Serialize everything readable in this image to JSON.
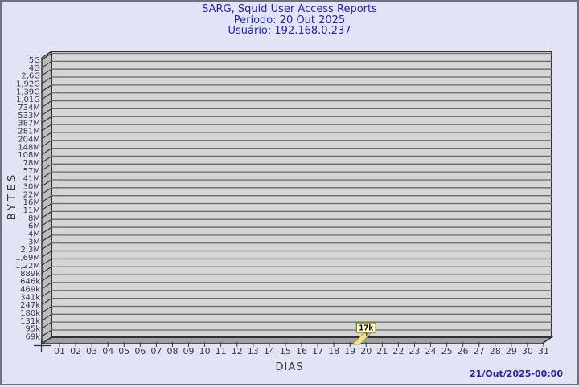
{
  "header": {
    "title": "SARG, Squid User Access Reports",
    "period": "Período: 20 Out 2025",
    "user": "Usuário: 192.168.0.237"
  },
  "footer": {
    "timestamp": "21/Out/2025-00:00"
  },
  "colors": {
    "background": "#e3e3f6",
    "frame_border": "#70707e",
    "title_text": "#2323ab",
    "plot_face": "#d5d5d5",
    "wall": "#bdbdbd",
    "floor": "#9f9f9f",
    "gridline": "#686868",
    "outline": "#303030",
    "tick_text": "#3a3a3a",
    "bar_fill": "#f1e289",
    "bar_stroke": "#9a8c3a",
    "tooltip_bg": "#ffffc9",
    "tooltip_border": "#85852f",
    "tooltip_text": "#000000"
  },
  "chart_data": {
    "type": "bar",
    "title": "SARG, Squid User Access Reports",
    "subtitle_period": "Período: 20 Out 2025",
    "subtitle_user": "Usuário: 192.168.0.237",
    "xlabel": "DIAS",
    "ylabel": "BYTES",
    "grid": true,
    "legend": "none",
    "style": "pseudo-3d",
    "x_tick_labels": [
      "01",
      "02",
      "03",
      "04",
      "05",
      "06",
      "07",
      "08",
      "09",
      "10",
      "11",
      "12",
      "13",
      "14",
      "15",
      "16",
      "17",
      "18",
      "19",
      "20",
      "21",
      "22",
      "23",
      "24",
      "25",
      "26",
      "27",
      "28",
      "29",
      "30",
      "31"
    ],
    "y_tick_labels": [
      "5G",
      "4G",
      "2,6G",
      "1,92G",
      "1,39G",
      "1,01G",
      "734M",
      "533M",
      "387M",
      "281M",
      "204M",
      "148M",
      "108M",
      "78M",
      "57M",
      "41M",
      "30M",
      "22M",
      "16M",
      "11M",
      "8M",
      "6M",
      "4M",
      "3M",
      "2,3M",
      "1,69M",
      "1,22M",
      "889k",
      "646k",
      "469k",
      "341k",
      "247k",
      "180k",
      "131k",
      "95k",
      "69k"
    ],
    "ylim": [
      "69k",
      "5G"
    ],
    "categories": [
      "01",
      "02",
      "03",
      "04",
      "05",
      "06",
      "07",
      "08",
      "09",
      "10",
      "11",
      "12",
      "13",
      "14",
      "15",
      "16",
      "17",
      "18",
      "19",
      "20",
      "21",
      "22",
      "23",
      "24",
      "25",
      "26",
      "27",
      "28",
      "29",
      "30",
      "31"
    ],
    "series": [
      {
        "name": "bytes",
        "values": [
          0,
          0,
          0,
          0,
          0,
          0,
          0,
          0,
          0,
          0,
          0,
          0,
          0,
          0,
          0,
          0,
          0,
          0,
          0,
          17000,
          0,
          0,
          0,
          0,
          0,
          0,
          0,
          0,
          0,
          0,
          0
        ]
      }
    ],
    "bars": [
      {
        "day": "20",
        "value_label": "17k",
        "value_bytes": 17000
      }
    ]
  }
}
